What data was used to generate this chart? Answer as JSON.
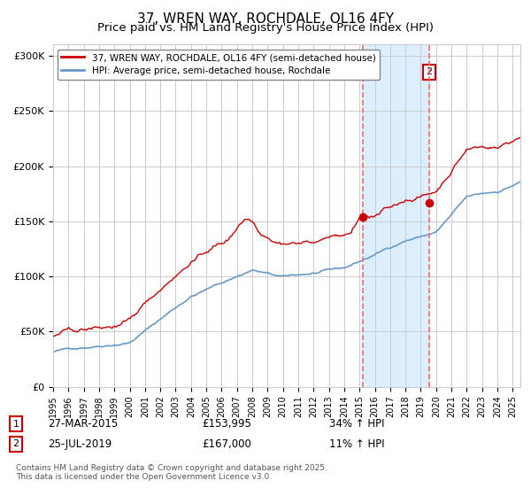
{
  "title": "37, WREN WAY, ROCHDALE, OL16 4FY",
  "subtitle": "Price paid vs. HM Land Registry's House Price Index (HPI)",
  "xlabel": "",
  "ylabel": "",
  "ylim": [
    0,
    310000
  ],
  "ytick_values": [
    0,
    50000,
    100000,
    150000,
    200000,
    250000,
    300000
  ],
  "ytick_labels": [
    "£0",
    "£50K",
    "£100K",
    "£150K",
    "£200K",
    "£250K",
    "£300K"
  ],
  "start_year": 1995,
  "end_year": 2025,
  "purchase1_date": 2015.23,
  "purchase1_price": 153995,
  "purchase2_date": 2019.56,
  "purchase2_price": 167000,
  "legend_line1": "37, WREN WAY, ROCHDALE, OL16 4FY (semi-detached house)",
  "legend_line2": "HPI: Average price, semi-detached house, Rochdale",
  "annotation1_label": "1",
  "annotation1_date": "27-MAR-2015",
  "annotation1_price": "£153,995",
  "annotation1_hpi": "34% ↑ HPI",
  "annotation2_label": "2",
  "annotation2_date": "25-JUL-2019",
  "annotation2_price": "£167,000",
  "annotation2_hpi": "11% ↑ HPI",
  "footer": "Contains HM Land Registry data © Crown copyright and database right 2025.\nThis data is licensed under the Open Government Licence v3.0.",
  "red_line_color": "#cc0000",
  "blue_line_color": "#6699cc",
  "shading_color": "#ddeeff",
  "dashed_line_color": "#ff6666",
  "grid_color": "#cccccc",
  "background_color": "#ffffff",
  "title_fontsize": 11,
  "subtitle_fontsize": 9.5
}
